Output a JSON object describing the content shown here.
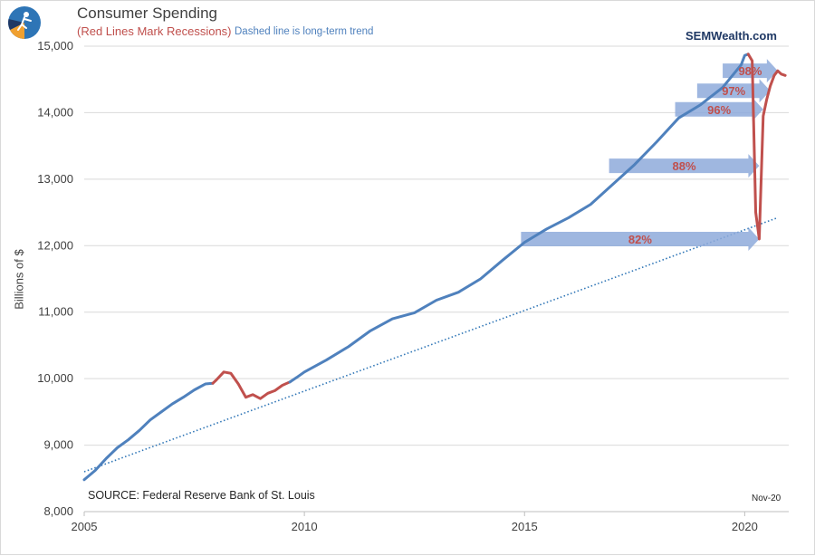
{
  "title": "Consumer Spending",
  "subtitle_recessions": "(Red Lines Mark Recessions)",
  "subtitle_trend": "Dashed line is long-term trend",
  "brand": "SEMWealth.com",
  "source": "SOURCE:  Federal Reserve Bank of St. Louis",
  "date_note": "Nov-20",
  "colors": {
    "spending": "#4f81bd",
    "recession": "#c0504d",
    "trend": "#2e75b6",
    "arrow": "#8eaadb",
    "grid": "#d9d9d9"
  },
  "chart_data": {
    "type": "line",
    "ylabel": "Billions of $",
    "xlim": [
      2005,
      2021.0
    ],
    "ylim": [
      8000,
      15000
    ],
    "x_ticks": [
      "2005",
      "2010",
      "2015",
      "2020"
    ],
    "x_tick_values": [
      2005,
      2010,
      2015,
      2020
    ],
    "y_ticks": [
      "8,000",
      "9,000",
      "10,000",
      "11,000",
      "12,000",
      "13,000",
      "14,000",
      "15,000"
    ],
    "y_tick_values": [
      8000,
      9000,
      10000,
      11000,
      12000,
      13000,
      14000,
      15000
    ],
    "grid": true,
    "series": [
      {
        "x": [
          2005.0,
          2005.25,
          2005.5,
          2005.75,
          2006.0,
          2006.25,
          2006.5,
          2006.75,
          2007.0,
          2007.25,
          2007.5,
          2007.75,
          2007.92,
          2008.0,
          2008.17,
          2008.33,
          2008.5,
          2008.67,
          2008.83,
          2009.0,
          2009.17,
          2009.33,
          2009.5,
          2009.67,
          2009.83,
          2010.0,
          2010.5,
          2011.0,
          2011.5,
          2012.0,
          2012.5,
          2013.0,
          2013.5,
          2014.0,
          2014.5,
          2015.0,
          2015.5,
          2016.0,
          2016.5,
          2017.0,
          2017.5,
          2018.0,
          2018.5,
          2019.0,
          2019.5,
          2019.92,
          2020.0,
          2020.08,
          2020.17,
          2020.25,
          2020.33,
          2020.42,
          2020.5,
          2020.58,
          2020.67,
          2020.75,
          2020.83,
          2020.92
        ],
        "values": [
          8480,
          8620,
          8800,
          8960,
          9080,
          9220,
          9380,
          9500,
          9620,
          9720,
          9830,
          9920,
          9930,
          9980,
          10100,
          10080,
          9920,
          9720,
          9760,
          9700,
          9780,
          9820,
          9900,
          9950,
          10020,
          10100,
          10280,
          10480,
          10720,
          10900,
          10990,
          11180,
          11300,
          11500,
          11780,
          12050,
          12250,
          12420,
          12620,
          12920,
          13220,
          13560,
          13920,
          14120,
          14380,
          14720,
          14860,
          14880,
          14780,
          12500,
          12100,
          13950,
          14200,
          14400,
          14560,
          14630,
          14580,
          14560
        ]
      }
    ],
    "recessions": [
      [
        2007.92,
        2009.5
      ],
      [
        2020.08,
        2020.92
      ]
    ],
    "trend": {
      "x": [
        2005.0,
        2020.75
      ],
      "values": [
        8600,
        12420
      ]
    },
    "arrows": [
      {
        "label": "82%",
        "start": 2014.92,
        "end": 2020.33,
        "value": 12100
      },
      {
        "label": "88%",
        "start": 2016.92,
        "end": 2020.33,
        "value": 13200
      },
      {
        "label": "96%",
        "start": 2018.42,
        "end": 2020.42,
        "value": 14050
      },
      {
        "label": "97%",
        "start": 2018.92,
        "end": 2020.58,
        "value": 14330
      },
      {
        "label": "98%",
        "start": 2019.5,
        "end": 2020.75,
        "value": 14630
      }
    ]
  }
}
